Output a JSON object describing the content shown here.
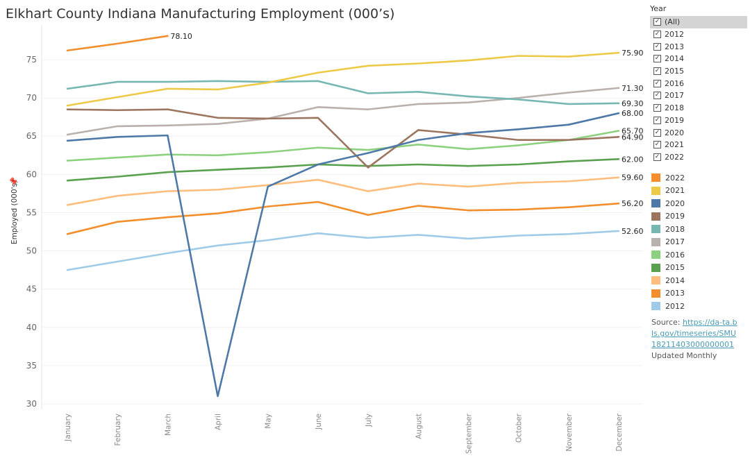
{
  "title": "Elkhart County Indiana Manufacturing Employment (000’s)",
  "filter": {
    "title": "Year",
    "items": [
      "(All)",
      "2012",
      "2013",
      "2014",
      "2015",
      "2016",
      "2017",
      "2018",
      "2019",
      "2020",
      "2021",
      "2022"
    ],
    "check_glyph": "✓"
  },
  "legend": [
    {
      "label": "2022",
      "color": "#f28e2b"
    },
    {
      "label": "2021",
      "color": "#edc948"
    },
    {
      "label": "2020",
      "color": "#4e79a7"
    },
    {
      "label": "2019",
      "color": "#9c755f"
    },
    {
      "label": "2018",
      "color": "#76b7b2"
    },
    {
      "label": "2017",
      "color": "#bab0ac"
    },
    {
      "label": "2016",
      "color": "#8cd17d"
    },
    {
      "label": "2015",
      "color": "#59a14f"
    },
    {
      "label": "2014",
      "color": "#ffbe7d"
    },
    {
      "label": "2013",
      "color": "#f28e2b"
    },
    {
      "label": "2012",
      "color": "#a0cbe8"
    }
  ],
  "source": {
    "prefix": "Source: ",
    "link": "https://data.bls.gov/timeseries/SMU18211403000000001",
    "link_display": "https://da-ta.bls.gov/timeseries/SMU18211403000000001",
    "updated": "Updated Monthly"
  },
  "chart_data": {
    "type": "line",
    "title": "Elkhart County Indiana Manufacturing Employment (000’s)",
    "xlabel": "",
    "ylabel": "Employed (000's)",
    "ylim": [
      30,
      78
    ],
    "yticks": [
      30,
      35,
      40,
      45,
      50,
      55,
      60,
      65,
      70,
      75
    ],
    "categories": [
      "January",
      "February",
      "March",
      "April",
      "May",
      "June",
      "July",
      "August",
      "September",
      "October",
      "November",
      "December"
    ],
    "grid": true,
    "legend_position": "right",
    "series": [
      {
        "name": "2012",
        "color": "#a0cbe8",
        "values": [
          47.5,
          48.6,
          49.7,
          50.7,
          51.4,
          52.3,
          51.7,
          52.1,
          51.6,
          52.0,
          52.2,
          52.6
        ],
        "end_label": "52.60"
      },
      {
        "name": "2013",
        "color": "#f28e2b",
        "values": [
          52.2,
          53.8,
          54.4,
          54.9,
          55.8,
          56.4,
          54.7,
          55.9,
          55.3,
          55.4,
          55.7,
          56.2
        ],
        "end_label": "56.20"
      },
      {
        "name": "2014",
        "color": "#ffbe7d",
        "values": [
          56.0,
          57.2,
          57.8,
          58.0,
          58.6,
          59.3,
          57.8,
          58.8,
          58.4,
          58.9,
          59.1,
          59.6
        ],
        "end_label": "59.60"
      },
      {
        "name": "2015",
        "color": "#59a14f",
        "values": [
          59.2,
          59.7,
          60.3,
          60.6,
          60.9,
          61.3,
          61.1,
          61.3,
          61.1,
          61.3,
          61.7,
          62.0
        ],
        "end_label": "62.00"
      },
      {
        "name": "2016",
        "color": "#8cd17d",
        "values": [
          61.8,
          62.2,
          62.6,
          62.5,
          62.9,
          63.5,
          63.2,
          63.9,
          63.3,
          63.8,
          64.5,
          65.7
        ],
        "end_label": "65.70"
      },
      {
        "name": "2017",
        "color": "#bab0ac",
        "values": [
          65.2,
          66.3,
          66.4,
          66.6,
          67.3,
          68.8,
          68.5,
          69.2,
          69.4,
          70.0,
          70.7,
          71.3
        ],
        "end_label": "71.30"
      },
      {
        "name": "2018",
        "color": "#76b7b2",
        "values": [
          71.2,
          72.1,
          72.1,
          72.2,
          72.1,
          72.2,
          70.6,
          70.8,
          70.2,
          69.8,
          69.2,
          69.3
        ],
        "end_label": "69.30"
      },
      {
        "name": "2019",
        "color": "#9c755f",
        "values": [
          68.5,
          68.4,
          68.5,
          67.4,
          67.3,
          67.4,
          60.9,
          65.8,
          65.2,
          64.5,
          64.5,
          64.9
        ],
        "end_label": "64.90"
      },
      {
        "name": "2020",
        "color": "#4e79a7",
        "values": [
          64.4,
          64.9,
          65.1,
          31.0,
          58.4,
          61.3,
          62.8,
          64.5,
          65.4,
          65.9,
          66.5,
          68.0
        ],
        "end_label": "68.00"
      },
      {
        "name": "2021",
        "color": "#edc948",
        "values": [
          69.0,
          70.1,
          71.2,
          71.1,
          72.0,
          73.3,
          74.2,
          74.5,
          74.9,
          75.5,
          75.4,
          75.9
        ],
        "end_label": "75.90"
      },
      {
        "name": "2022",
        "color": "#f28e2b",
        "values": [
          76.2,
          77.1,
          78.1,
          null,
          null,
          null,
          null,
          null,
          null,
          null,
          null,
          null
        ],
        "end_label": "78.10"
      }
    ]
  }
}
